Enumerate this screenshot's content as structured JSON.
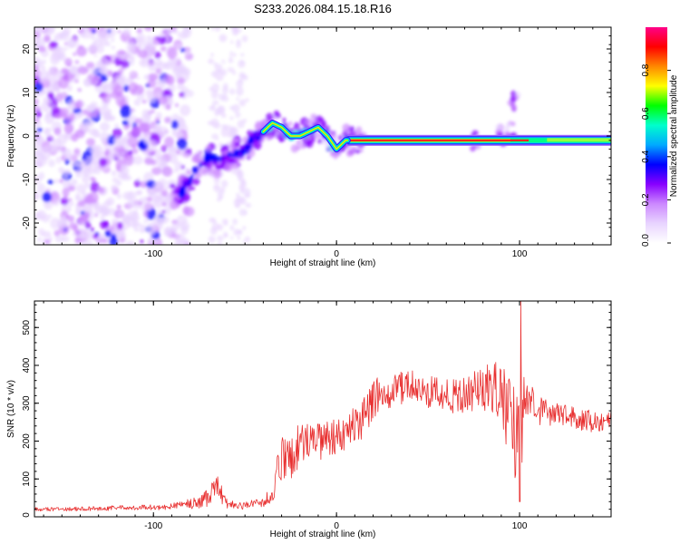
{
  "title": "S233.2026.084.15.18.R16",
  "chart_data": [
    {
      "type": "heatmap",
      "xlabel": "Height of straight line (km)",
      "ylabel": "Frequency (Hz)",
      "xlim": [
        -165,
        150
      ],
      "ylim": [
        -25,
        25
      ],
      "x_ticks": [
        -100,
        0,
        100
      ],
      "y_ticks": [
        -20,
        -10,
        0,
        10,
        20
      ],
      "colorbar": {
        "label": "Normalized spectral amplitude",
        "range": [
          0.0,
          1.0
        ],
        "ticks": [
          "0.0",
          "0.2",
          "0.4",
          "0.6",
          "0.8"
        ],
        "stops": [
          "#ffffff",
          "#e8d4ff",
          "#cc88ff",
          "#8800ff",
          "#0000ff",
          "#00aaff",
          "#00ffcc",
          "#00ff00",
          "#ffff00",
          "#ff8800",
          "#ff0000",
          "#ff0088"
        ]
      },
      "ridge": {
        "name": "frequency track",
        "x": [
          -85,
          -80,
          -75,
          -70,
          -65,
          -60,
          -55,
          -50,
          -45,
          -40,
          -35,
          -30,
          -25,
          -20,
          -15,
          -10,
          -5,
          0,
          5,
          10,
          20,
          40,
          60,
          80,
          100,
          120,
          150
        ],
        "y": [
          -13,
          -10,
          -7,
          -5,
          -6,
          -5,
          -4,
          -3,
          -1,
          1,
          3,
          2,
          0,
          0,
          1,
          2,
          0,
          -3,
          -1,
          -1,
          -1,
          -1,
          -1,
          -1,
          -1,
          -1,
          -1.5
        ]
      }
    },
    {
      "type": "line",
      "xlabel": "Height of straight line (km)",
      "ylabel": "SNR (10 * v/v)",
      "xlim": [
        -165,
        150
      ],
      "ylim": [
        0,
        570
      ],
      "x_ticks": [
        -100,
        0,
        100
      ],
      "y_ticks": [
        0,
        100,
        200,
        300,
        400,
        500
      ],
      "series": [
        {
          "name": "SNR",
          "color": "#e83030",
          "x": [
            -165,
            -150,
            -130,
            -110,
            -95,
            -85,
            -80,
            -75,
            -70,
            -65,
            -60,
            -55,
            -50,
            -45,
            -40,
            -35,
            -30,
            -25,
            -20,
            -10,
            0,
            10,
            15,
            20,
            25,
            30,
            40,
            50,
            60,
            70,
            80,
            85,
            90,
            95,
            98,
            100,
            102,
            105,
            110,
            120,
            130,
            140,
            150
          ],
          "y": [
            20,
            20,
            22,
            25,
            25,
            30,
            35,
            40,
            50,
            80,
            35,
            30,
            30,
            35,
            40,
            60,
            150,
            160,
            190,
            200,
            210,
            240,
            260,
            310,
            330,
            330,
            350,
            330,
            320,
            320,
            340,
            345,
            320,
            260,
            200,
            150,
            300,
            310,
            280,
            270,
            260,
            250,
            255
          ],
          "noise": [
            5,
            5,
            6,
            7,
            7,
            10,
            15,
            20,
            25,
            35,
            15,
            10,
            10,
            12,
            15,
            30,
            70,
            60,
            60,
            55,
            50,
            50,
            55,
            50,
            50,
            45,
            45,
            45,
            45,
            50,
            60,
            70,
            80,
            120,
            150,
            250,
            70,
            50,
            40,
            35,
            30,
            30,
            30
          ]
        }
      ]
    }
  ]
}
